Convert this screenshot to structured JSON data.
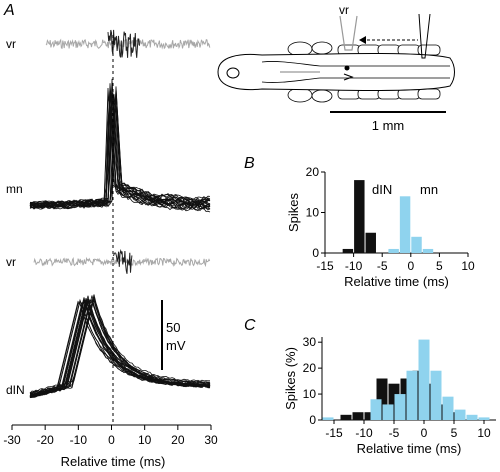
{
  "panels": {
    "A": {
      "letter": "A",
      "trace_labels": [
        "vr",
        "mn",
        "vr",
        "dIN"
      ],
      "scale_bar": {
        "value": "50",
        "unit": "mV"
      },
      "x_ticks": [
        "-30",
        "-20",
        "-10",
        "0",
        "10",
        "20",
        "30"
      ],
      "x_label": "Relative time (ms)",
      "diagram": {
        "label": "vr",
        "scale": "1 mm"
      }
    },
    "B": {
      "letter": "B"
    },
    "C": {
      "letter": "C"
    }
  },
  "colors": {
    "dIN": "#111111",
    "mn": "#8fd3ee",
    "vr_trace": "#a8a8a8"
  },
  "chart_data": [
    {
      "type": "bar",
      "panel": "B",
      "xlabel": "Relative time (ms)",
      "ylabel": "Spikes",
      "xlim": [
        -15,
        10
      ],
      "ylim": [
        0,
        20
      ],
      "xticks": [
        -15,
        -10,
        -5,
        0,
        5,
        10
      ],
      "yticks": [
        0,
        10,
        20
      ],
      "series": [
        {
          "name": "dIN",
          "x": [
            -11,
            -9,
            -7
          ],
          "values": [
            1,
            18,
            5
          ]
        },
        {
          "name": "mn",
          "x": [
            -3,
            -1,
            1,
            3
          ],
          "values": [
            1,
            14,
            4,
            1
          ]
        }
      ]
    },
    {
      "type": "bar",
      "panel": "C",
      "xlabel": "Relative time (ms)",
      "ylabel": "Spikes (%)",
      "xlim": [
        -17,
        12
      ],
      "ylim": [
        0,
        32
      ],
      "xticks": [
        -15,
        -10,
        -5,
        0,
        5,
        10
      ],
      "yticks": [
        0,
        10,
        20,
        30
      ],
      "series": [
        {
          "name": "dIN",
          "x": [
            -13,
            -11,
            -9,
            -7,
            -5,
            -3,
            -1,
            1,
            3,
            5
          ],
          "values": [
            2,
            3,
            3,
            16,
            14,
            16,
            19,
            14,
            6,
            3
          ]
        },
        {
          "name": "mn",
          "x": [
            -16,
            -12,
            -8,
            -6,
            -4,
            -2,
            0,
            2,
            4,
            6,
            8,
            10
          ],
          "values": [
            1,
            0,
            8,
            6,
            10,
            19,
            31,
            19,
            9,
            4,
            2,
            1
          ]
        }
      ]
    }
  ]
}
